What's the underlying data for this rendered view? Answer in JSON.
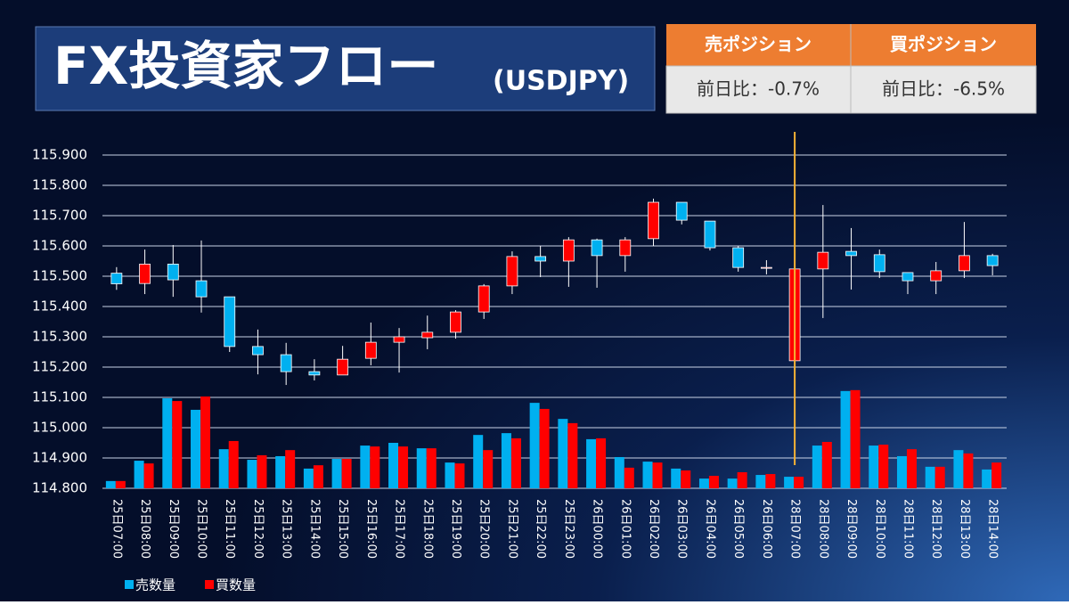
{
  "header": {
    "title": "FX投資家フロー",
    "subtitle": "(USDJPY)"
  },
  "summary": {
    "columns": [
      "売ポジション",
      "買ポジション"
    ],
    "values": [
      "前日比：-0.7%",
      "前日比：-6.5%"
    ]
  },
  "chart_data": {
    "type": "candlestick",
    "categories": [
      "25日07:00",
      "25日08:00",
      "25日09:00",
      "25日10:00",
      "25日11:00",
      "25日12:00",
      "25日13:00",
      "25日14:00",
      "25日15:00",
      "25日16:00",
      "25日17:00",
      "25日18:00",
      "25日19:00",
      "25日20:00",
      "25日21:00",
      "25日22:00",
      "25日23:00",
      "26日00:00",
      "26日01:00",
      "26日02:00",
      "26日03:00",
      "26日04:00",
      "26日05:00",
      "26日06:00",
      "28日07:00",
      "28日08:00",
      "28日09:00",
      "28日10:00",
      "28日11:00",
      "28日12:00",
      "28日13:00",
      "28日14:00"
    ],
    "candles": {
      "open": [
        115.51,
        115.476,
        115.54,
        115.485,
        115.432,
        115.268,
        115.241,
        115.185,
        115.174,
        115.229,
        115.282,
        115.297,
        115.315,
        115.382,
        115.468,
        115.565,
        115.55,
        115.62,
        115.568,
        115.624,
        115.744,
        115.682,
        115.594,
        115.529,
        115.221,
        115.524,
        115.582,
        115.571,
        115.512,
        115.485,
        115.518,
        115.568
      ],
      "high": [
        115.53,
        115.588,
        115.603,
        115.618,
        115.432,
        115.324,
        115.28,
        115.226,
        115.27,
        115.347,
        115.329,
        115.37,
        115.388,
        115.474,
        115.582,
        115.6,
        115.629,
        115.624,
        115.629,
        115.756,
        115.744,
        115.682,
        115.6,
        115.553,
        115.559,
        115.735,
        115.659,
        115.588,
        115.512,
        115.547,
        115.679,
        115.574
      ],
      "low": [
        115.455,
        115.441,
        115.432,
        115.38,
        115.25,
        115.176,
        115.141,
        115.156,
        115.174,
        115.206,
        115.182,
        115.259,
        115.294,
        115.359,
        115.441,
        115.497,
        115.465,
        115.462,
        115.515,
        115.6,
        115.671,
        115.585,
        115.515,
        115.506,
        115.221,
        115.362,
        115.456,
        115.494,
        115.441,
        115.441,
        115.494,
        115.503
      ],
      "close": [
        115.475,
        115.54,
        115.488,
        115.432,
        115.268,
        115.241,
        115.185,
        115.174,
        115.226,
        115.282,
        115.3,
        115.315,
        115.382,
        115.468,
        115.565,
        115.55,
        115.62,
        115.568,
        115.62,
        115.744,
        115.685,
        115.594,
        115.529,
        115.529,
        115.524,
        115.579,
        115.568,
        115.515,
        115.485,
        115.518,
        115.568,
        115.535
      ],
      "up_color": "#ff0000",
      "down_color": "#00b0f0"
    },
    "series": [
      {
        "name": "売数量",
        "color": "#00b0f0",
        "axis": "y2",
        "values": [
          0.024,
          0.091,
          0.297,
          0.259,
          0.129,
          0.094,
          0.106,
          0.065,
          0.097,
          0.141,
          0.15,
          0.132,
          0.085,
          0.176,
          0.182,
          0.282,
          0.229,
          0.162,
          0.103,
          0.088,
          0.065,
          0.032,
          0.032,
          0.044,
          0.038,
          0.141,
          0.321,
          0.141,
          0.106,
          0.071,
          0.126,
          0.062
        ]
      },
      {
        "name": "買数量",
        "color": "#ff0000",
        "axis": "y2",
        "values": [
          0.024,
          0.082,
          0.288,
          0.303,
          0.156,
          0.109,
          0.126,
          0.076,
          0.097,
          0.138,
          0.138,
          0.132,
          0.082,
          0.126,
          0.165,
          0.262,
          0.215,
          0.165,
          0.068,
          0.085,
          0.059,
          0.041,
          0.053,
          0.047,
          0.038,
          0.153,
          0.324,
          0.144,
          0.129,
          0.071,
          0.115,
          0.085
        ]
      }
    ],
    "ylim": [
      114.8,
      115.9
    ],
    "yticks": [
      {
        "value": 114.8,
        "label": "114.800"
      },
      {
        "value": 114.9,
        "label": "114.900"
      },
      {
        "value": 115.0,
        "label": "115.000"
      },
      {
        "value": 115.1,
        "label": "115.100"
      },
      {
        "value": 115.2,
        "label": "115.200"
      },
      {
        "value": 115.3,
        "label": "115.300"
      },
      {
        "value": 115.4,
        "label": "115.400"
      },
      {
        "value": 115.5,
        "label": "115.500"
      },
      {
        "value": 115.6,
        "label": "115.600"
      },
      {
        "value": 115.7,
        "label": "115.700"
      },
      {
        "value": 115.8,
        "label": "115.800"
      },
      {
        "value": 115.9,
        "label": "115.900"
      }
    ],
    "y2lim": [
      0,
      1.1
    ],
    "grid": true,
    "marker_index": 24,
    "marker_color": "#f5b335",
    "legend": "bottom-left"
  }
}
